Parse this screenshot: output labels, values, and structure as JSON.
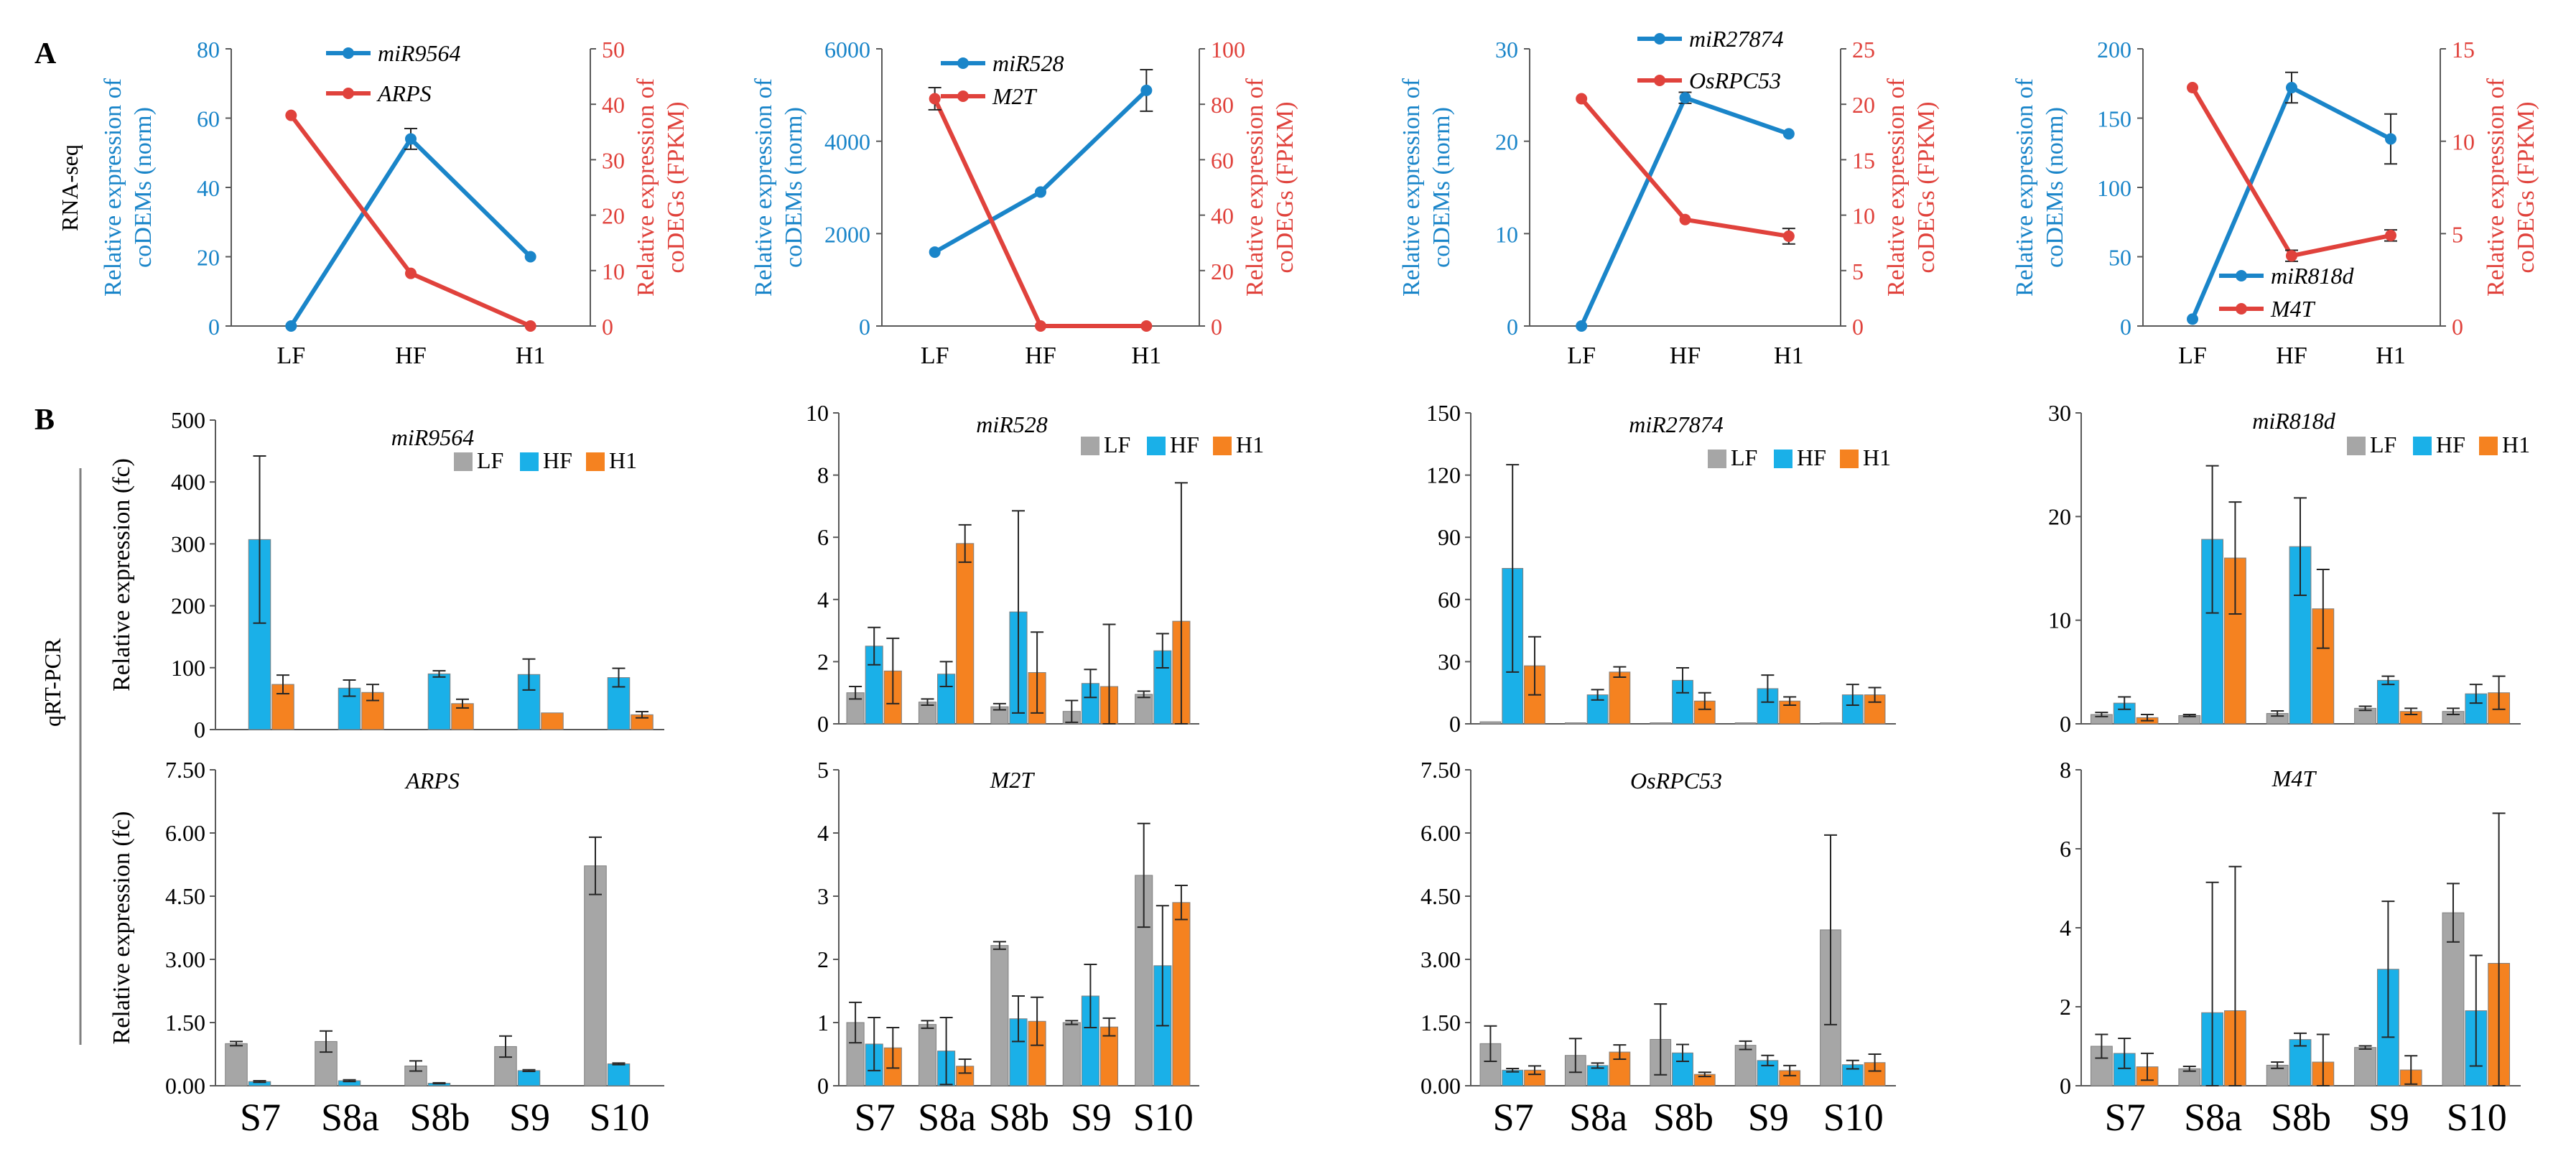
{
  "figure": {
    "panel_labels": {
      "a": "A",
      "b": "B"
    },
    "row_labels": {
      "rnaseq": "RNA-seq",
      "qrtpcr": "qRT-PCR"
    }
  },
  "colors": {
    "blue": "#1a85c9",
    "red": "#e0423c",
    "gray": "#a6a6a6",
    "cyan": "#1ab0e8",
    "orange": "#f58220",
    "axis": "#595959",
    "err": "#262626"
  },
  "chart_data": [
    {
      "type": "line",
      "panel": "A",
      "categories": [
        "LF",
        "HF",
        "H1"
      ],
      "left_axis": {
        "label_lines": [
          "Relative expression of",
          "coDEMs (norm)"
        ],
        "ylim": [
          0,
          80
        ],
        "ticks": [
          "0",
          "20",
          "40",
          "60",
          "80"
        ]
      },
      "right_axis": {
        "label_lines": [
          "Relative expression of",
          "coDEGs (FPKM)"
        ],
        "ylim": [
          0,
          50
        ],
        "ticks": [
          "0",
          "10",
          "20",
          "30",
          "40",
          "50"
        ]
      },
      "series": [
        {
          "name": "miR9564",
          "axis": "left",
          "color": "blue",
          "values": [
            0,
            54,
            20
          ],
          "errors": [
            0,
            3,
            0
          ]
        },
        {
          "name": "ARPS",
          "axis": "right",
          "color": "red",
          "values": [
            38,
            9.5,
            0
          ],
          "errors": [
            0,
            0,
            0
          ]
        }
      ],
      "legend": {
        "position": "top-left",
        "layout": "stacked"
      }
    },
    {
      "type": "line",
      "panel": "A",
      "categories": [
        "LF",
        "HF",
        "H1"
      ],
      "left_axis": {
        "label_lines": [
          "Relative expression of",
          "coDEMs (norm)"
        ],
        "ylim": [
          0,
          6000
        ],
        "ticks": [
          "0",
          "2000",
          "4000",
          "6000"
        ]
      },
      "right_axis": {
        "label_lines": [
          "Relative expression of",
          "coDEGs (FPKM)"
        ],
        "ylim": [
          0,
          100
        ],
        "ticks": [
          "0",
          "20",
          "40",
          "60",
          "80",
          "100"
        ]
      },
      "series": [
        {
          "name": "miR528",
          "axis": "left",
          "color": "blue",
          "values": [
            1600,
            2900,
            5100
          ],
          "errors": [
            0,
            0,
            450
          ]
        },
        {
          "name": "M2T",
          "axis": "right",
          "color": "red",
          "values": [
            82,
            0,
            0
          ],
          "errors": [
            4,
            0,
            0
          ]
        }
      ],
      "legend": {
        "position": "top-left",
        "layout": "stacked"
      }
    },
    {
      "type": "line",
      "panel": "A",
      "categories": [
        "LF",
        "HF",
        "H1"
      ],
      "left_axis": {
        "label_lines": [
          "Relative expression of",
          "coDEMs (norm)"
        ],
        "ylim": [
          0,
          30
        ],
        "ticks": [
          "0",
          "10",
          "20",
          "30"
        ]
      },
      "right_axis": {
        "label_lines": [
          "Relative expression of",
          "coDEGs (FPKM)"
        ],
        "ylim": [
          0,
          25
        ],
        "ticks": [
          "0",
          "5",
          "10",
          "15",
          "20",
          "25"
        ]
      },
      "series": [
        {
          "name": "miR27874",
          "axis": "left",
          "color": "blue",
          "values": [
            0,
            24.7,
            20.8
          ],
          "errors": [
            0,
            0.6,
            0
          ]
        },
        {
          "name": "OsRPC53",
          "axis": "right",
          "color": "red",
          "values": [
            20.5,
            9.6,
            8.1
          ],
          "errors": [
            0,
            0,
            0.7
          ]
        }
      ],
      "legend": {
        "position": "top-left",
        "layout": "stacked"
      }
    },
    {
      "type": "line",
      "panel": "A",
      "categories": [
        "LF",
        "HF",
        "H1"
      ],
      "left_axis": {
        "label_lines": [
          "Relative expression of",
          "coDEMs (norm)"
        ],
        "ylim": [
          0,
          200
        ],
        "ticks": [
          "0",
          "50",
          "100",
          "150",
          "200"
        ]
      },
      "right_axis": {
        "label_lines": [
          "Relative expression of",
          "coDEGs (FPKM)"
        ],
        "ylim": [
          0,
          15
        ],
        "ticks": [
          "0",
          "5",
          "10",
          "15"
        ]
      },
      "series": [
        {
          "name": "miR818d",
          "axis": "left",
          "color": "blue",
          "values": [
            5,
            172,
            135
          ],
          "errors": [
            0,
            11,
            18
          ]
        },
        {
          "name": "M4T",
          "axis": "right",
          "color": "red",
          "values": [
            12.9,
            3.8,
            4.9
          ],
          "errors": [
            0,
            0.3,
            0.3
          ]
        }
      ],
      "legend": {
        "position": "bottom-center",
        "layout": "stacked"
      }
    },
    {
      "type": "bar",
      "panel": "B",
      "title": "miR9564",
      "ylabel": "Relative expression (fc)",
      "categories": [
        "S7",
        "S8a",
        "S8b",
        "S9",
        "S10"
      ],
      "ylim": [
        0,
        500
      ],
      "ticks": [
        "0",
        "100",
        "200",
        "300",
        "400",
        "500"
      ],
      "series": [
        {
          "name": "LF",
          "color": "gray",
          "values": [
            0,
            0,
            0,
            0,
            0
          ],
          "errors": [
            0,
            0,
            0,
            0,
            0
          ]
        },
        {
          "name": "HF",
          "color": "cyan",
          "values": [
            307,
            67,
            90,
            89,
            84
          ],
          "errors": [
            135,
            13,
            5,
            25,
            15
          ]
        },
        {
          "name": "H1",
          "color": "orange",
          "values": [
            73,
            60,
            42,
            27,
            24
          ],
          "errors": [
            15,
            13,
            7,
            0,
            5
          ]
        }
      ],
      "legend": {
        "position": "top-right"
      }
    },
    {
      "type": "bar",
      "panel": "B",
      "title": "miR528",
      "ylabel": "",
      "categories": [
        "S7",
        "S8a",
        "S8b",
        "S9",
        "S10"
      ],
      "ylim": [
        0,
        10
      ],
      "ticks": [
        "0",
        "2",
        "4",
        "6",
        "8",
        "10"
      ],
      "series": [
        {
          "name": "LF",
          "color": "gray",
          "values": [
            1.0,
            0.7,
            0.55,
            0.4,
            0.95
          ],
          "errors": [
            0.2,
            0.1,
            0.1,
            0.35,
            0.1
          ]
        },
        {
          "name": "HF",
          "color": "cyan",
          "values": [
            2.5,
            1.6,
            3.6,
            1.3,
            2.35
          ],
          "errors": [
            0.6,
            0.4,
            3.25,
            0.45,
            0.55
          ]
        },
        {
          "name": "H1",
          "color": "orange",
          "values": [
            1.7,
            5.8,
            1.65,
            1.2,
            3.3
          ],
          "errors": [
            1.05,
            0.6,
            1.3,
            2.0,
            4.45
          ]
        }
      ],
      "legend": {
        "position": "top-right"
      }
    },
    {
      "type": "bar",
      "panel": "B",
      "title": "miR27874",
      "ylabel": "",
      "categories": [
        "S7",
        "S8a",
        "S8b",
        "S9",
        "S10"
      ],
      "ylim": [
        0,
        150
      ],
      "ticks": [
        "0",
        "30",
        "60",
        "90",
        "120",
        "150"
      ],
      "series": [
        {
          "name": "LF",
          "color": "gray",
          "values": [
            1,
            0.5,
            0.5,
            0.5,
            0.5
          ],
          "errors": [
            0,
            0,
            0,
            0,
            0
          ]
        },
        {
          "name": "HF",
          "color": "cyan",
          "values": [
            75,
            14,
            21,
            17,
            14
          ],
          "errors": [
            50,
            2.5,
            6,
            6.5,
            5
          ]
        },
        {
          "name": "H1",
          "color": "orange",
          "values": [
            28,
            25,
            11,
            11,
            14
          ],
          "errors": [
            14,
            2.5,
            4,
            2,
            3.5
          ]
        }
      ],
      "legend": {
        "position": "top-right"
      }
    },
    {
      "type": "bar",
      "panel": "B",
      "title": "miR818d",
      "ylabel": "",
      "categories": [
        "S7",
        "S8a",
        "S8b",
        "S9",
        "S10"
      ],
      "ylim": [
        0,
        30
      ],
      "ticks": [
        "0",
        "10",
        "20",
        "30"
      ],
      "series": [
        {
          "name": "LF",
          "color": "gray",
          "values": [
            0.9,
            0.8,
            1.0,
            1.5,
            1.2
          ],
          "errors": [
            0.2,
            0.1,
            0.25,
            0.2,
            0.3
          ]
        },
        {
          "name": "HF",
          "color": "cyan",
          "values": [
            2.0,
            17.8,
            17.1,
            4.2,
            2.9
          ],
          "errors": [
            0.6,
            7.1,
            4.7,
            0.4,
            0.9
          ]
        },
        {
          "name": "H1",
          "color": "orange",
          "values": [
            0.6,
            16.0,
            11.1,
            1.2,
            3.0
          ],
          "errors": [
            0.3,
            5.4,
            3.8,
            0.3,
            1.6
          ]
        }
      ],
      "legend": {
        "position": "top-right"
      }
    },
    {
      "type": "bar",
      "panel": "B",
      "title": "ARPS",
      "ylabel": "Relative expression (fc)",
      "categories": [
        "S7",
        "S8a",
        "S8b",
        "S9",
        "S10"
      ],
      "ylim": [
        0,
        7.5
      ],
      "ticks": [
        "0.00",
        "1.50",
        "3.00",
        "4.50",
        "6.00",
        "7.50"
      ],
      "series": [
        {
          "name": "LF",
          "color": "gray",
          "values": [
            1.0,
            1.05,
            0.47,
            0.93,
            5.22
          ],
          "errors": [
            0.05,
            0.25,
            0.12,
            0.25,
            0.68
          ]
        },
        {
          "name": "HF",
          "color": "cyan",
          "values": [
            0.1,
            0.12,
            0.06,
            0.36,
            0.52
          ],
          "errors": [
            0.02,
            0.02,
            0.01,
            0.02,
            0.02
          ]
        },
        {
          "name": "H1",
          "color": "orange",
          "values": [
            0,
            0,
            0,
            0,
            0
          ],
          "errors": [
            0,
            0,
            0,
            0,
            0
          ]
        }
      ]
    },
    {
      "type": "bar",
      "panel": "B",
      "title": "M2T",
      "ylabel": "",
      "categories": [
        "S7",
        "S8a",
        "S8b",
        "S9",
        "S10"
      ],
      "ylim": [
        0,
        5
      ],
      "ticks": [
        "0",
        "1",
        "2",
        "3",
        "4",
        "5"
      ],
      "series": [
        {
          "name": "LF",
          "color": "gray",
          "values": [
            1.0,
            0.97,
            2.22,
            1.0,
            3.33
          ],
          "errors": [
            0.32,
            0.06,
            0.06,
            0.03,
            0.82
          ]
        },
        {
          "name": "HF",
          "color": "cyan",
          "values": [
            0.66,
            0.55,
            1.06,
            1.42,
            1.9
          ],
          "errors": [
            0.42,
            0.53,
            0.36,
            0.5,
            0.95
          ]
        },
        {
          "name": "H1",
          "color": "orange",
          "values": [
            0.6,
            0.31,
            1.02,
            0.93,
            2.9
          ],
          "errors": [
            0.32,
            0.11,
            0.38,
            0.14,
            0.27
          ]
        }
      ]
    },
    {
      "type": "bar",
      "panel": "B",
      "title": "OsRPC53",
      "ylabel": "",
      "categories": [
        "S7",
        "S8a",
        "S8b",
        "S9",
        "S10"
      ],
      "ylim": [
        0,
        7.5
      ],
      "ticks": [
        "0.00",
        "1.50",
        "3.00",
        "4.50",
        "6.00",
        "7.50"
      ],
      "series": [
        {
          "name": "LF",
          "color": "gray",
          "values": [
            1.0,
            0.72,
            1.1,
            0.96,
            3.7
          ],
          "errors": [
            0.42,
            0.4,
            0.84,
            0.1,
            2.25
          ]
        },
        {
          "name": "HF",
          "color": "cyan",
          "values": [
            0.37,
            0.48,
            0.78,
            0.6,
            0.5
          ],
          "errors": [
            0.04,
            0.06,
            0.2,
            0.12,
            0.1
          ]
        },
        {
          "name": "H1",
          "color": "orange",
          "values": [
            0.37,
            0.8,
            0.27,
            0.36,
            0.55
          ],
          "errors": [
            0.1,
            0.17,
            0.05,
            0.12,
            0.2
          ]
        }
      ]
    },
    {
      "type": "bar",
      "panel": "B",
      "title": "M4T",
      "ylabel": "",
      "categories": [
        "S7",
        "S8a",
        "S8b",
        "S9",
        "S10"
      ],
      "ylim": [
        0,
        8
      ],
      "ticks": [
        "0",
        "2",
        "4",
        "6",
        "8"
      ],
      "series": [
        {
          "name": "LF",
          "color": "gray",
          "values": [
            1.0,
            0.43,
            0.52,
            0.97,
            4.38
          ],
          "errors": [
            0.3,
            0.06,
            0.08,
            0.04,
            0.74
          ]
        },
        {
          "name": "HF",
          "color": "cyan",
          "values": [
            0.82,
            1.85,
            1.17,
            2.95,
            1.9
          ],
          "errors": [
            0.38,
            3.3,
            0.16,
            1.72,
            1.4
          ]
        },
        {
          "name": "H1",
          "color": "orange",
          "values": [
            0.48,
            1.9,
            0.6,
            0.4,
            3.1
          ],
          "errors": [
            0.34,
            3.65,
            0.7,
            0.36,
            3.8
          ]
        }
      ]
    }
  ]
}
